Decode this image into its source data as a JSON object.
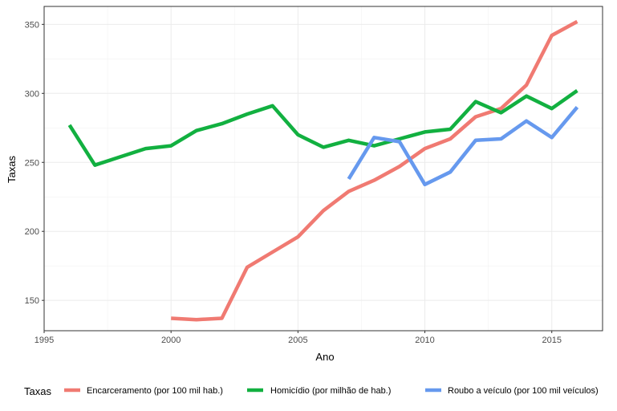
{
  "chart_data": {
    "type": "line",
    "title": "",
    "xlabel": "Ano",
    "ylabel": "Taxas",
    "xlim": [
      1995,
      2017
    ],
    "ylim": [
      128,
      363
    ],
    "x_ticks": [
      1995,
      2000,
      2005,
      2010,
      2015
    ],
    "x_tick_labels": [
      "1995",
      "2000",
      "2005",
      "2010",
      "2015"
    ],
    "y_ticks": [
      150,
      200,
      250,
      300,
      350
    ],
    "y_tick_labels": [
      "150",
      "200",
      "250",
      "300",
      "350"
    ],
    "grid": true,
    "legend": {
      "title": "Taxas",
      "position": "bottom"
    },
    "series": [
      {
        "name": "Encarceramento (por 100 mil hab.)",
        "color": "#F07A72",
        "x": [
          2000,
          2001,
          2002,
          2003,
          2004,
          2005,
          2006,
          2007,
          2008,
          2009,
          2010,
          2011,
          2012,
          2013,
          2014,
          2015,
          2016
        ],
        "values": [
          137,
          136,
          137,
          174,
          185,
          196,
          215,
          229,
          237,
          247,
          260,
          267,
          283,
          289,
          306,
          342,
          352
        ]
      },
      {
        "name": "Homicídio (por milhão de hab.)",
        "color": "#12B040",
        "x": [
          1996,
          1997,
          1998,
          1999,
          2000,
          2001,
          2002,
          2003,
          2004,
          2005,
          2006,
          2007,
          2008,
          2009,
          2010,
          2011,
          2012,
          2013,
          2014,
          2015,
          2016
        ],
        "values": [
          277,
          248,
          254,
          260,
          262,
          273,
          278,
          285,
          291,
          270,
          261,
          266,
          262,
          267,
          272,
          274,
          294,
          286,
          298,
          289,
          302
        ]
      },
      {
        "name": "Roubo a veículo (por 100 mil veículos)",
        "color": "#6699EE",
        "x": [
          2007,
          2008,
          2009,
          2010,
          2011,
          2012,
          2013,
          2014,
          2015,
          2016
        ],
        "values": [
          238,
          268,
          265,
          234,
          243,
          266,
          267,
          280,
          268,
          290
        ]
      }
    ]
  }
}
